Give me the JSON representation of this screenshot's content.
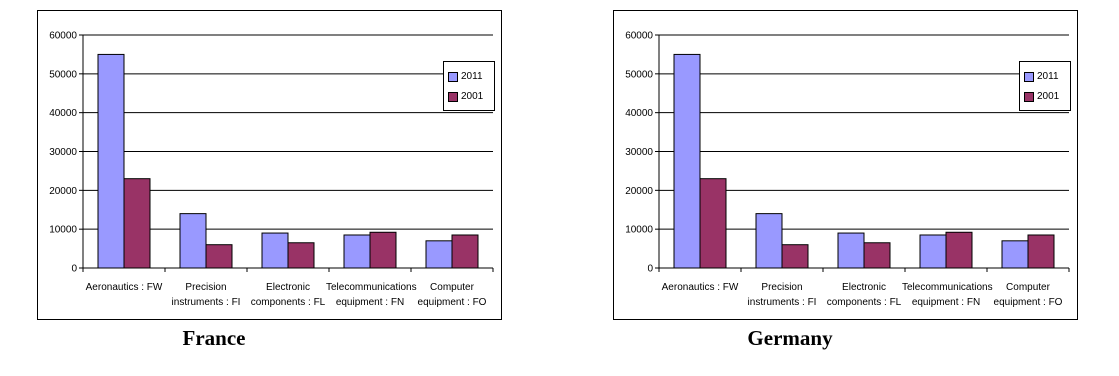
{
  "charts": [
    {
      "caption": "France",
      "chart_data": {
        "type": "bar",
        "categories": [
          "Aeronautics : FW",
          "Precision instruments : FI",
          "Electronic components : FL",
          "Telecommunications equipment : FN",
          "Computer equipment : FO"
        ],
        "series": [
          {
            "name": "2011",
            "values": [
              55000,
              14000,
              9000,
              8500,
              7000
            ],
            "color": "#9999ff"
          },
          {
            "name": "2001",
            "values": [
              23000,
              6000,
              6500,
              9200,
              8500
            ],
            "color": "#993366"
          }
        ],
        "yticks": [
          "0",
          "10000",
          "20000",
          "30000",
          "40000",
          "50000",
          "60000"
        ],
        "ylim": [
          0,
          60000
        ],
        "grid": true,
        "legend": "right"
      }
    },
    {
      "caption": "Germany",
      "chart_data": {
        "type": "bar",
        "categories": [
          "Aeronautics : FW",
          "Precision instruments : FI",
          "Electronic components : FL",
          "Telecommunications equipment : FN",
          "Computer equipment : FO"
        ],
        "series": [
          {
            "name": "2011",
            "values": [
              55000,
              14000,
              9000,
              8500,
              7000
            ],
            "color": "#9999ff"
          },
          {
            "name": "2001",
            "values": [
              23000,
              6000,
              6500,
              9200,
              8500
            ],
            "color": "#993366"
          }
        ],
        "yticks": [
          "0",
          "10000",
          "20000",
          "30000",
          "40000",
          "50000",
          "60000"
        ],
        "ylim": [
          0,
          60000
        ],
        "grid": true,
        "legend": "right"
      }
    }
  ]
}
